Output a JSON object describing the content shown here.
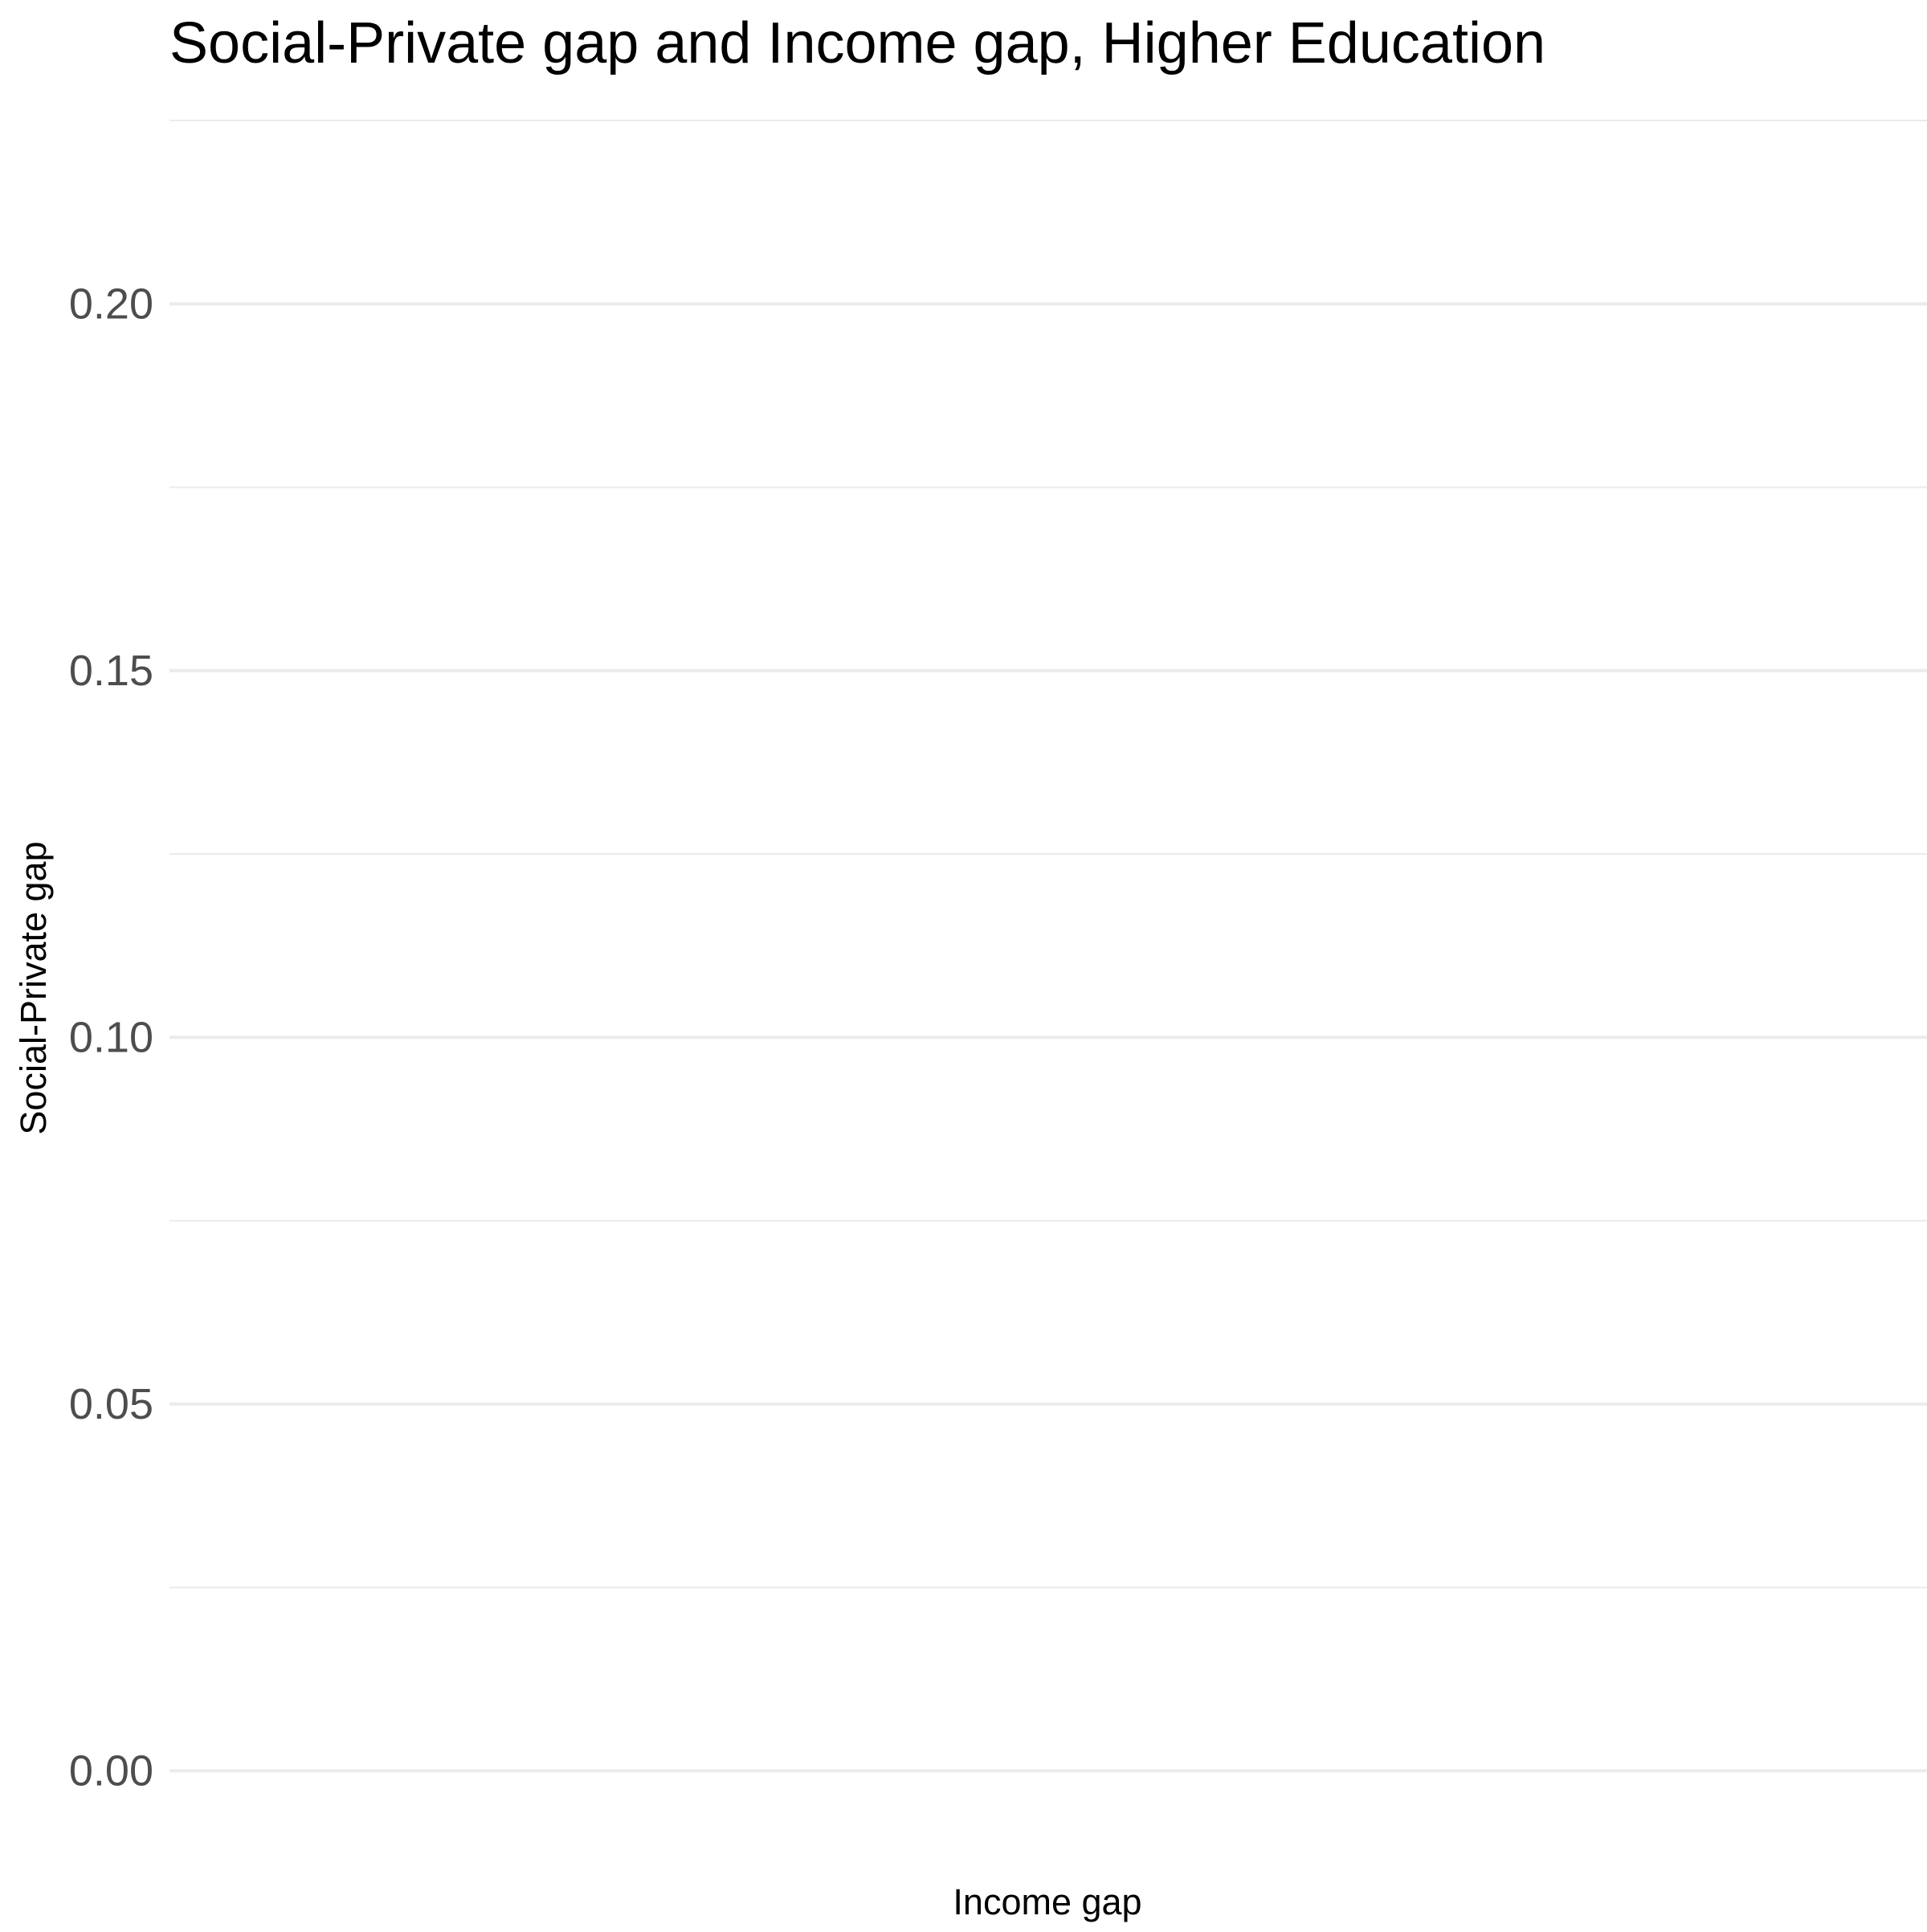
{
  "chart_data": {
    "type": "scatter",
    "title": "Social-Private gap and Income gap, Higher Education",
    "xlabel": "Income gap",
    "ylabel": "Social-Private gap",
    "ylim": [
      -0.005,
      0.225
    ],
    "y_ticks": [
      0.0,
      0.05,
      0.1,
      0.15,
      0.2
    ],
    "y_tick_labels": [
      "0.00",
      "0.05",
      "0.10",
      "0.15",
      "0.20"
    ],
    "y_minor_ticks": [
      0.025,
      0.075,
      0.125,
      0.175,
      0.225
    ],
    "x_ticks": [],
    "x_tick_labels": [],
    "series": [],
    "grid": true,
    "grid_color": "#ebebeb",
    "title_color": "#000000",
    "tick_label_color": "#4d4d4d",
    "background": "#ffffff"
  }
}
